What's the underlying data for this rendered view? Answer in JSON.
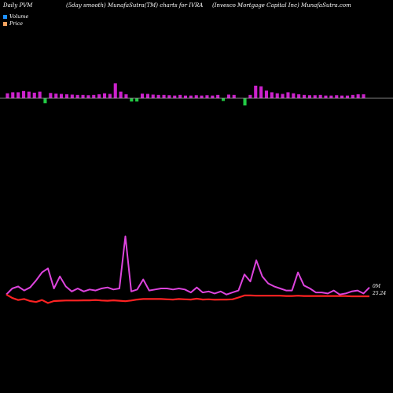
{
  "header": {
    "left": "Daily PVM",
    "middle": "(5day smooth) MunafaSutra(TM) charts for IVRA",
    "right": "(Invesco  Mortgage  Capital Inc) MunafaSutra.com"
  },
  "legend": {
    "volume_label": "Volume",
    "price_label": "Price",
    "volume_color": "#1e90ff",
    "price_color": "#f4a460"
  },
  "colors": {
    "background": "#000000",
    "volume_up": "#cc22cc",
    "volume_down": "#22cc44",
    "baseline": "#aaaaaa",
    "pvm_line": "#dd44dd",
    "price_line": "#ff2222"
  },
  "chart_data": {
    "type": "bar+line",
    "title": "",
    "right_labels": {
      "volume_level": "0M",
      "price_level": "25.24"
    },
    "volume": {
      "up": [
        1.5,
        1.8,
        1.8,
        2.2,
        2.0,
        1.7,
        2.0,
        0,
        1.6,
        1.4,
        1.3,
        1.2,
        1.1,
        1.0,
        1.0,
        0.9,
        1.0,
        1.2,
        1.5,
        1.3,
        4.5,
        2.0,
        1.2,
        0,
        0,
        1.4,
        1.3,
        1.1,
        1.0,
        1.0,
        0.9,
        0.8,
        1.0,
        0.8,
        0.8,
        0.9,
        0.8,
        0.9,
        0.8,
        1.0,
        0,
        1.1,
        1.0,
        0,
        0,
        1.0,
        3.8,
        3.6,
        2.3,
        1.8,
        1.5,
        1.3,
        1.8,
        1.5,
        1.2,
        1.0,
        0.9,
        0.9,
        1.0,
        0.8,
        0.8,
        0.9,
        0.8,
        0.8,
        1.0,
        1.2,
        1.2
      ],
      "down": [
        0,
        0,
        0,
        0,
        0,
        0,
        0,
        1.5,
        0,
        0,
        0,
        0,
        0,
        0,
        0,
        0,
        0,
        0,
        0,
        0,
        0,
        0,
        0,
        1.0,
        1.0,
        0,
        0,
        0,
        0,
        0,
        0,
        0,
        0,
        0,
        0,
        0,
        0,
        0,
        0,
        0,
        0.8,
        0,
        0,
        0,
        2.2,
        0,
        0,
        0,
        0,
        0,
        0,
        0,
        0,
        0,
        0,
        0,
        0,
        0,
        0,
        0,
        0,
        0,
        0,
        0,
        0,
        0,
        0
      ]
    },
    "pvm": [
      25.6,
      26.2,
      26.4,
      26.0,
      26.3,
      27.0,
      27.8,
      28.2,
      26.2,
      27.4,
      26.4,
      25.9,
      26.2,
      25.9,
      26.1,
      26.0,
      26.2,
      26.3,
      26.1,
      26.2,
      31.4,
      25.9,
      26.1,
      27.1,
      26.0,
      26.1,
      26.2,
      26.2,
      26.1,
      26.2,
      26.1,
      25.8,
      26.3,
      25.8,
      25.9,
      25.7,
      25.9,
      25.6,
      25.8,
      26.0,
      27.6,
      26.9,
      29.0,
      27.4,
      26.7,
      26.4,
      26.2,
      26.0,
      26.0,
      27.8,
      26.5,
      26.2,
      25.8,
      25.8,
      25.7,
      26.0,
      25.6,
      25.7,
      25.9,
      26.0,
      25.7,
      26.3
    ],
    "price": [
      25.6,
      25.25,
      25.05,
      25.15,
      24.95,
      24.85,
      25.05,
      24.75,
      24.95,
      24.98,
      25.0,
      25.0,
      25.0,
      25.02,
      25.02,
      25.05,
      25.0,
      24.98,
      25.02,
      24.98,
      24.93,
      25.0,
      25.1,
      25.15,
      25.15,
      25.15,
      25.15,
      25.12,
      25.1,
      25.15,
      25.12,
      25.1,
      25.18,
      25.1,
      25.12,
      25.08,
      25.1,
      25.1,
      25.12,
      25.3,
      25.5,
      25.5,
      25.48,
      25.48,
      25.48,
      25.48,
      25.48,
      25.45,
      25.45,
      25.48,
      25.45,
      25.45,
      25.45,
      25.45,
      25.45,
      25.45,
      25.45,
      25.45,
      25.42,
      25.42,
      25.42,
      25.42
    ],
    "ylim": [
      24.4,
      31.6
    ]
  }
}
